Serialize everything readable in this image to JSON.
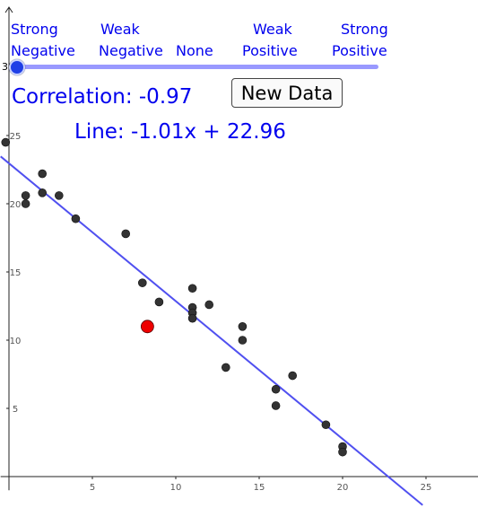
{
  "slider": {
    "labels_top": [
      "Strong",
      "Weak",
      "Weak",
      "Strong"
    ],
    "labels_bottom": [
      "Negative",
      "Negative",
      "None",
      "Positive",
      "Positive"
    ],
    "value": "30"
  },
  "correlation_text": "Correlation: -0.97",
  "line_text": "Line: -1.01x + 22.96",
  "button_label": "New Data",
  "chart_data": {
    "type": "scatter",
    "xlim": [
      -0.5,
      28.5
    ],
    "ylim": [
      -1,
      33
    ],
    "x_ticks": [
      "5",
      "10",
      "15",
      "20",
      "25"
    ],
    "y_ticks": [
      "5",
      "10",
      "15",
      "20",
      "25"
    ],
    "points": [
      {
        "x": -0.2,
        "y": 24.5
      },
      {
        "x": 1,
        "y": 20.6
      },
      {
        "x": 1,
        "y": 20
      },
      {
        "x": 2,
        "y": 22.2
      },
      {
        "x": 2,
        "y": 20.8
      },
      {
        "x": 3,
        "y": 20.6
      },
      {
        "x": 4,
        "y": 18.9
      },
      {
        "x": 7,
        "y": 17.8
      },
      {
        "x": 8,
        "y": 14.2
      },
      {
        "x": 9,
        "y": 12.8
      },
      {
        "x": 11,
        "y": 13.8
      },
      {
        "x": 11,
        "y": 12.4
      },
      {
        "x": 11,
        "y": 12
      },
      {
        "x": 11,
        "y": 11.6
      },
      {
        "x": 12,
        "y": 12.6
      },
      {
        "x": 13,
        "y": 8
      },
      {
        "x": 14,
        "y": 11
      },
      {
        "x": 14,
        "y": 10
      },
      {
        "x": 16,
        "y": 6.4
      },
      {
        "x": 16,
        "y": 5.2
      },
      {
        "x": 17,
        "y": 7.4
      },
      {
        "x": 19,
        "y": 3.8
      },
      {
        "x": 20,
        "y": 2.2
      },
      {
        "x": 20,
        "y": 1.8
      }
    ],
    "highlight_point": {
      "x": 8.3,
      "y": 11
    },
    "regression": {
      "slope": -1.01,
      "intercept": 22.96
    },
    "colors": {
      "points": "#333333",
      "highlight": "#ee0000",
      "line": "#5050f0",
      "text": "#0000ee"
    }
  }
}
